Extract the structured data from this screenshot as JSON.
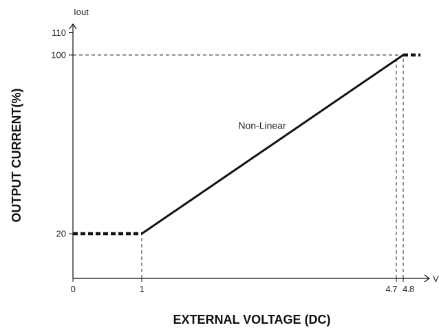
{
  "chart_data": {
    "type": "line",
    "title": "",
    "xlabel": "EXTERNAL VOLTAGE (DC)",
    "ylabel": "OUTPUT CURRENT(%)",
    "x_axis_end_label": "V",
    "y_axis_end_label": "Iout",
    "xlim": [
      0,
      5.15
    ],
    "ylim": [
      0,
      120
    ],
    "x_ticks": [
      {
        "value": 0,
        "label": "0"
      },
      {
        "value": 1,
        "label": "1"
      },
      {
        "value": 4.7,
        "label": "4.7"
      },
      {
        "value": 4.8,
        "label": "4.8"
      }
    ],
    "y_ticks": [
      {
        "value": 20,
        "label": "20"
      },
      {
        "value": 100,
        "label": "100"
      },
      {
        "value": 110,
        "label": "110"
      }
    ],
    "segments": [
      {
        "style": "dashed-thick",
        "x": [
          0,
          1
        ],
        "y": [
          20,
          20
        ]
      },
      {
        "style": "solid",
        "x": [
          1,
          4.8
        ],
        "y": [
          20,
          100
        ]
      },
      {
        "style": "dashed-thick",
        "x": [
          4.8,
          5.05
        ],
        "y": [
          100,
          100
        ]
      }
    ],
    "reference_lines": [
      {
        "x": [
          0,
          4.8
        ],
        "y": [
          100,
          100
        ]
      },
      {
        "x": [
          1,
          1
        ],
        "y": [
          0,
          20
        ]
      },
      {
        "x": [
          4.7,
          4.7
        ],
        "y": [
          0,
          100
        ]
      },
      {
        "x": [
          4.8,
          4.8
        ],
        "y": [
          0,
          100
        ]
      }
    ],
    "annotations": [
      {
        "text": "Non-Linear",
        "x": 2.75,
        "y": 67
      }
    ],
    "grid": false,
    "legend": "none"
  }
}
